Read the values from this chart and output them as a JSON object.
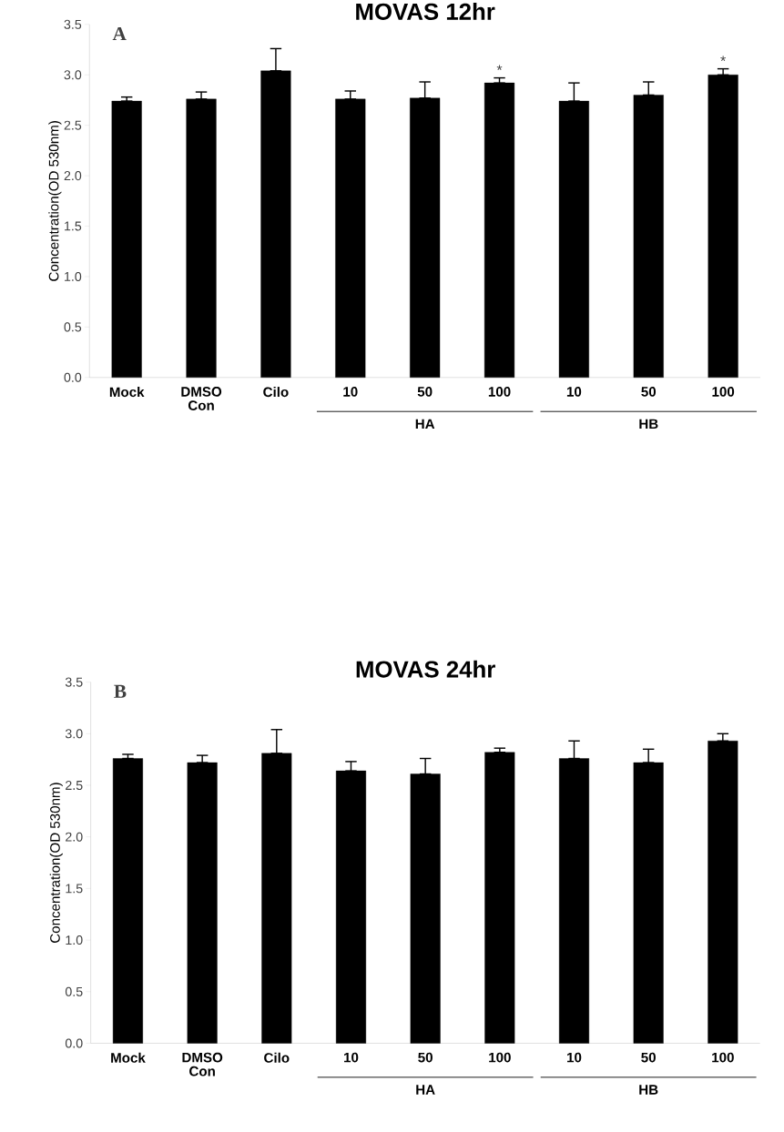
{
  "chart_data": [
    {
      "type": "bar",
      "title": "MOVAS  12hr",
      "ylabel": "Concentration(OD 530nm)",
      "categories": [
        "Mock",
        "DMSO Con",
        "Cilo",
        "10",
        "50",
        "100",
        "10",
        "50",
        "100"
      ],
      "values": [
        2.74,
        2.76,
        3.04,
        2.76,
        2.77,
        2.92,
        2.74,
        2.8,
        3.0
      ],
      "errors": [
        [
          2.74,
          2.78
        ],
        [
          2.76,
          2.83
        ],
        [
          3.04,
          3.26
        ],
        [
          2.76,
          2.84
        ],
        [
          2.77,
          2.93
        ],
        [
          2.92,
          2.97
        ],
        [
          2.74,
          2.92
        ],
        [
          2.8,
          2.93
        ],
        [
          3.0,
          3.06
        ]
      ],
      "color": "#000000",
      "ylim": [
        0,
        3.5
      ],
      "yticks": [
        {
          "value": 0,
          "label": "0.0"
        },
        {
          "value": 0.5,
          "label": "0.5"
        },
        {
          "value": 1,
          "label": "1.0"
        },
        {
          "value": 1.5,
          "label": "1.5"
        },
        {
          "value": 2,
          "label": "2.0"
        },
        {
          "value": 2.5,
          "label": "2.5"
        },
        {
          "value": 3,
          "label": "3.0"
        },
        {
          "value": 3.5,
          "label": "3.5"
        }
      ],
      "grid": false,
      "annotations": [
        "A",
        "HA",
        "HB",
        "*",
        "*"
      ]
    },
    {
      "type": "bar",
      "title": "MOVAS  24hr",
      "ylabel": "Concentration(OD 530nm)",
      "categories": [
        "Mock",
        "DMSO Con",
        "Cilo",
        "10",
        "50",
        "100",
        "10",
        "50",
        "100"
      ],
      "values": [
        2.76,
        2.72,
        2.81,
        2.64,
        2.61,
        2.82,
        2.76,
        2.72,
        2.93
      ],
      "errors": [
        [
          2.76,
          2.8
        ],
        [
          2.72,
          2.79
        ],
        [
          2.81,
          3.04
        ],
        [
          2.64,
          2.73
        ],
        [
          2.61,
          2.76
        ],
        [
          2.82,
          2.86
        ],
        [
          2.76,
          2.93
        ],
        [
          2.72,
          2.85
        ],
        [
          2.93,
          3.0
        ]
      ],
      "color": "#000000",
      "ylim": [
        0,
        3.5
      ],
      "yticks": [
        {
          "value": 0,
          "label": "0.0"
        },
        {
          "value": 0.5,
          "label": "0.5"
        },
        {
          "value": 1,
          "label": "1.0"
        },
        {
          "value": 1.5,
          "label": "1.5"
        },
        {
          "value": 2,
          "label": "2.0"
        },
        {
          "value": 2.5,
          "label": "2.5"
        },
        {
          "value": 3,
          "label": "3.0"
        },
        {
          "value": 3.5,
          "label": "3.5"
        }
      ],
      "grid": false,
      "annotations": [
        "B",
        "HA",
        "HB"
      ]
    }
  ]
}
